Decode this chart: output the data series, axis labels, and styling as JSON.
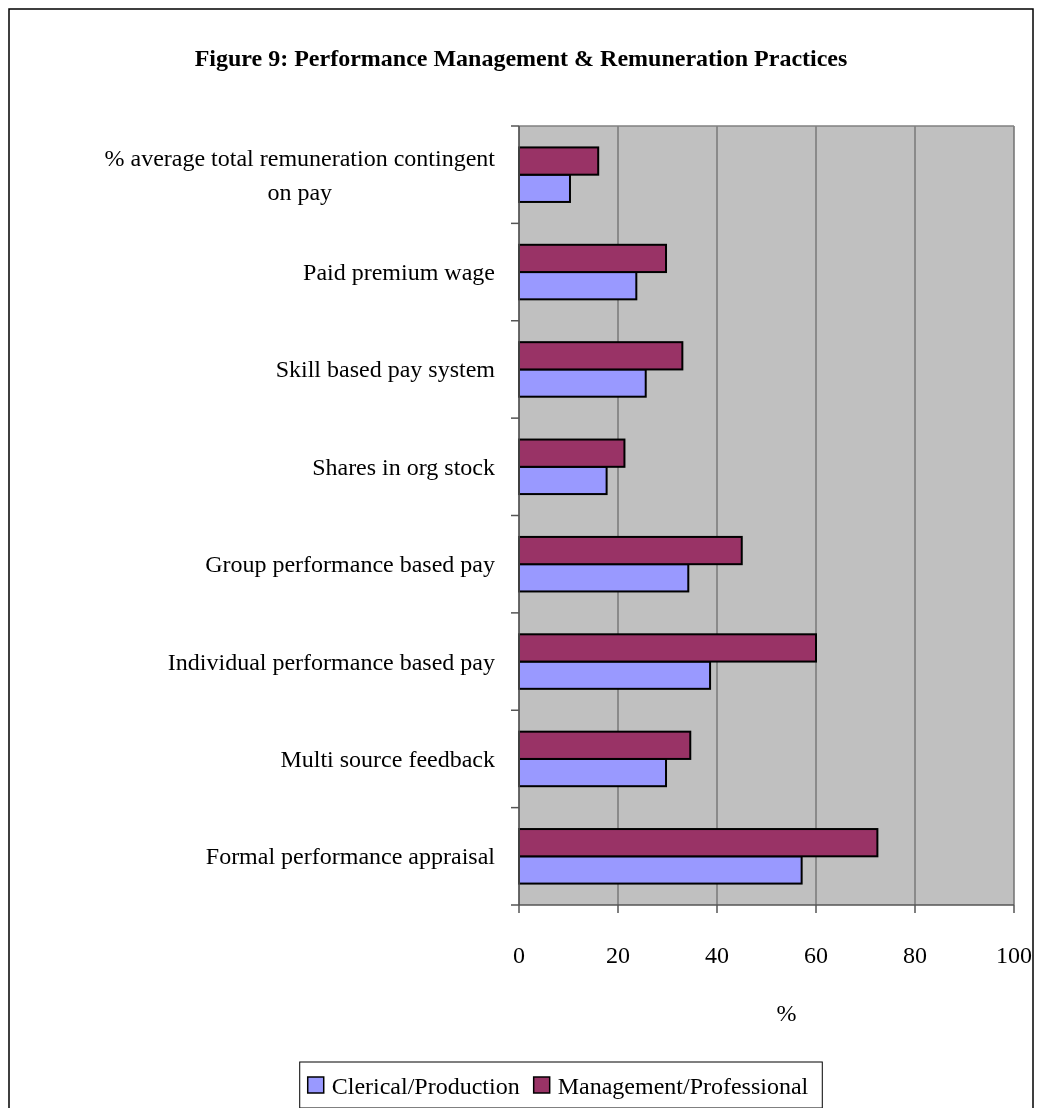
{
  "chart_data": {
    "type": "bar",
    "orientation": "horizontal",
    "title": "Figure 9: Performance Management & Remuneration Practices",
    "xlabel": "%",
    "categories": [
      "% average total remuneration contingent on pay",
      "Paid premium wage",
      "Skill based pay system",
      "Shares in org stock",
      "Group performance based pay",
      "Individual performance based pay",
      "Multi source feedback",
      "Formal performance appraisal"
    ],
    "series": [
      {
        "name": "Clerical/Production",
        "color": "#9999ff",
        "values": [
          10.3,
          23.7,
          25.6,
          17.7,
          34.2,
          38.6,
          29.7,
          57.1
        ]
      },
      {
        "name": "Management/Professional",
        "color": "#993366",
        "values": [
          16.0,
          29.7,
          33.0,
          21.3,
          45.0,
          60.0,
          34.6,
          72.4
        ]
      }
    ],
    "xlim": [
      0,
      100
    ],
    "xticks": [
      0,
      20,
      40,
      60,
      80,
      100
    ],
    "grid": "x",
    "legend": "bottom"
  }
}
